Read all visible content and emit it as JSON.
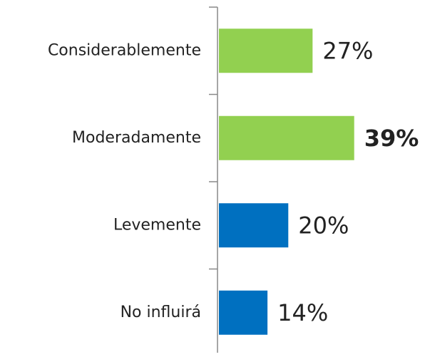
{
  "chart_data": {
    "type": "barh",
    "categories": [
      "Considerablemente",
      "Moderadamente",
      "Levemente",
      "No influirá"
    ],
    "values": [
      27,
      39,
      20,
      14
    ],
    "value_labels": [
      "27%",
      "39%",
      "20%",
      "14%"
    ],
    "colors": [
      "#92d050",
      "#92d050",
      "#0070c0",
      "#0070c0"
    ],
    "bold_labels": [
      false,
      true,
      false,
      false
    ],
    "xlim": [
      0,
      59
    ]
  }
}
